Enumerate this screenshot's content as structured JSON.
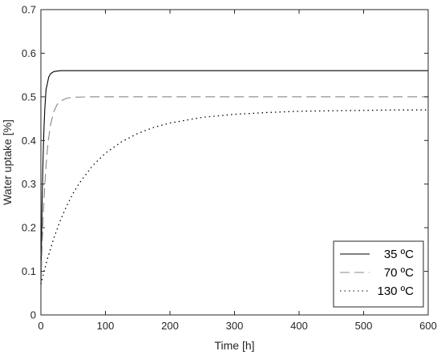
{
  "chart_data": {
    "type": "line",
    "xlabel": "Time [h]",
    "ylabel": "Water uptake [%]",
    "xlim": [
      0,
      600
    ],
    "ylim": [
      0,
      0.7
    ],
    "x_ticks": [
      0,
      100,
      200,
      300,
      400,
      500,
      600
    ],
    "y_ticks": [
      0,
      0.1,
      0.2,
      0.3,
      0.4,
      0.5,
      0.6,
      0.7
    ],
    "x_tick_labels": [
      "0",
      "100",
      "200",
      "300",
      "400",
      "500",
      "600"
    ],
    "y_tick_labels": [
      "0",
      "0.1",
      "0.2",
      "0.3",
      "0.4",
      "0.5",
      "0.6",
      "0.7"
    ],
    "grid": false,
    "legend_position": "bottom-right",
    "series": [
      {
        "name": "35 ºC",
        "line_style": "solid",
        "color": "#000000",
        "x": [
          0,
          1,
          2,
          3,
          4,
          5,
          6,
          8,
          10,
          12,
          15,
          20,
          30,
          50,
          100,
          200,
          300,
          400,
          500,
          600
        ],
        "y": [
          0.07,
          0.177,
          0.266,
          0.336,
          0.392,
          0.436,
          0.471,
          0.517,
          0.53,
          0.545,
          0.553,
          0.558,
          0.56,
          0.56,
          0.56,
          0.56,
          0.56,
          0.56,
          0.56,
          0.56
        ]
      },
      {
        "name": "70 ºC",
        "line_style": "dashed",
        "color": "#888888",
        "x": [
          0,
          2,
          4,
          6,
          8,
          10,
          12,
          15,
          20,
          25,
          30,
          40,
          50,
          75,
          100,
          200,
          300,
          400,
          500,
          600
        ],
        "y": [
          0.07,
          0.164,
          0.238,
          0.297,
          0.342,
          0.378,
          0.406,
          0.436,
          0.466,
          0.482,
          0.49,
          0.497,
          0.499,
          0.5,
          0.5,
          0.5,
          0.5,
          0.5,
          0.5,
          0.5
        ]
      },
      {
        "name": "130 ºC",
        "line_style": "dotted",
        "color": "#000000",
        "x": [
          0,
          5,
          10,
          20,
          30,
          40,
          50,
          60,
          80,
          100,
          125,
          150,
          175,
          200,
          250,
          300,
          350,
          400,
          450,
          500,
          550,
          600
        ],
        "y": [
          0.07,
          0.1,
          0.128,
          0.176,
          0.216,
          0.25,
          0.279,
          0.303,
          0.342,
          0.371,
          0.397,
          0.416,
          0.43,
          0.44,
          0.453,
          0.46,
          0.464,
          0.467,
          0.468,
          0.469,
          0.47,
          0.47
        ]
      }
    ]
  }
}
